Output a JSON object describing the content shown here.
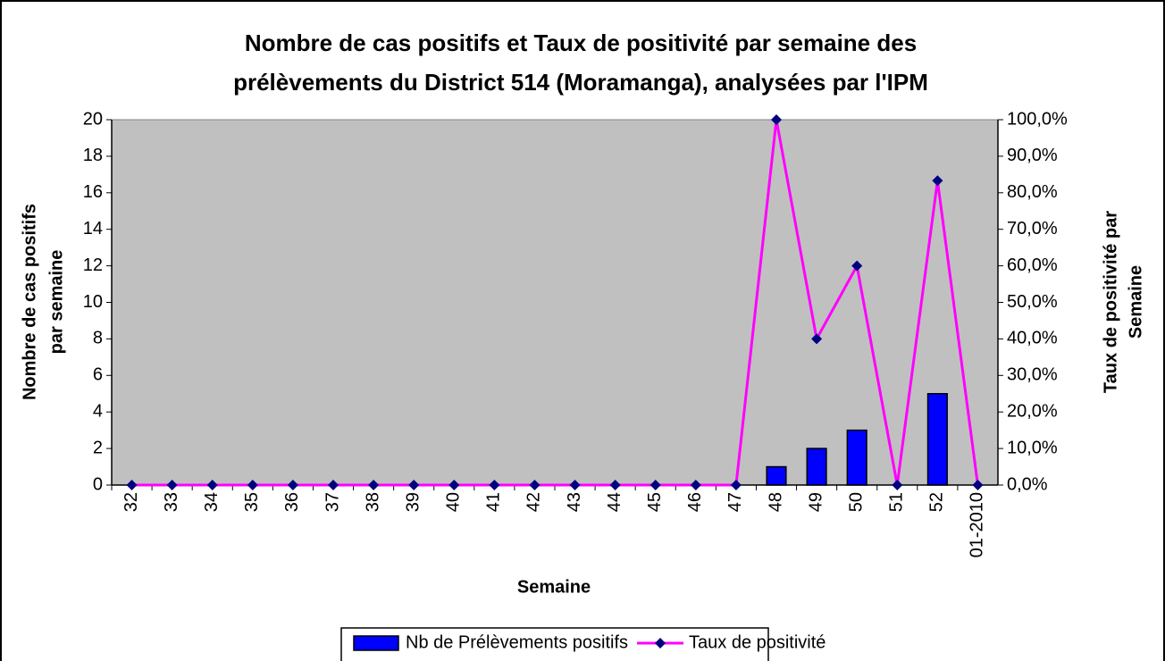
{
  "chart_data": {
    "type": "combo",
    "title": [
      "Nombre de cas positifs et Taux de positivité par semaine des",
      "prélèvements du District 514 (Moramanga), analysées par l'IPM"
    ],
    "x_label": "Semaine",
    "y_label": [
      "Nombre de cas positifs",
      "par semaine"
    ],
    "y2_label": [
      "Taux de positivité par",
      "Semaine"
    ],
    "categories": [
      "32",
      "33",
      "34",
      "35",
      "36",
      "37",
      "38",
      "39",
      "40",
      "41",
      "42",
      "43",
      "44",
      "45",
      "46",
      "47",
      "48",
      "49",
      "50",
      "51",
      "52",
      "01-2010"
    ],
    "series": [
      {
        "name": "Nb de Prélèvements positifs",
        "type": "bar",
        "color": "#0000ff",
        "values": [
          0,
          0,
          0,
          0,
          0,
          0,
          0,
          0,
          0,
          0,
          0,
          0,
          0,
          0,
          0,
          0,
          1,
          2,
          3,
          0,
          5,
          0
        ]
      },
      {
        "name": "Taux de positivité",
        "type": "line",
        "axis": "y2",
        "color": "#ff00ff",
        "marker_color": "#000080",
        "values": [
          0,
          0,
          0,
          0,
          0,
          0,
          0,
          0,
          0,
          0,
          0,
          0,
          0,
          0,
          0,
          0,
          100,
          40,
          60,
          0,
          83.3,
          0
        ]
      }
    ],
    "ylim": [
      0,
      20
    ],
    "yticks": [
      0,
      2,
      4,
      6,
      8,
      10,
      12,
      14,
      16,
      18,
      20
    ],
    "y2lim": [
      0,
      100
    ],
    "y2ticks": [
      {
        "value": 0,
        "label": "0,0%"
      },
      {
        "value": 10,
        "label": "10,0%"
      },
      {
        "value": 20,
        "label": "20,0%"
      },
      {
        "value": 30,
        "label": "30,0%"
      },
      {
        "value": 40,
        "label": "40,0%"
      },
      {
        "value": 50,
        "label": "50,0%"
      },
      {
        "value": 60,
        "label": "60,0%"
      },
      {
        "value": 70,
        "label": "70,0%"
      },
      {
        "value": 80,
        "label": "80,0%"
      },
      {
        "value": 90,
        "label": "90,0%"
      },
      {
        "value": 100,
        "label": "100,0%"
      }
    ],
    "plot_background": "#c0c0c0",
    "legend": "bottom"
  }
}
